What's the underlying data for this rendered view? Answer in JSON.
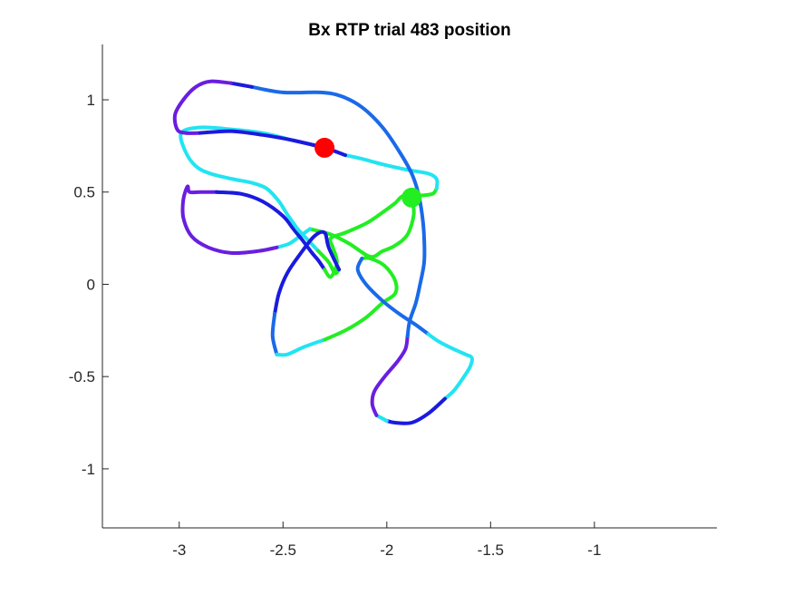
{
  "chart_data": {
    "type": "line",
    "title": "Bx  RTP trial 483 position",
    "xlabel": "",
    "ylabel": "",
    "xlim": [
      -3.37,
      -0.41
    ],
    "ylim": [
      -1.32,
      1.3
    ],
    "grid": false,
    "x_ticks": [
      {
        "value": -3,
        "label": "-3"
      },
      {
        "value": -2.5,
        "label": "-2.5"
      },
      {
        "value": -2,
        "label": "-2"
      },
      {
        "value": -1.5,
        "label": "-1.5"
      },
      {
        "value": -1,
        "label": "-1"
      }
    ],
    "y_ticks": [
      {
        "value": 1,
        "label": "1"
      },
      {
        "value": 0.5,
        "label": "0.5"
      },
      {
        "value": 0,
        "label": "0"
      },
      {
        "value": -0.5,
        "label": "-0.5"
      },
      {
        "value": -1,
        "label": "-1"
      }
    ],
    "colors": {
      "blue": "#1a1adf",
      "violet": "#6a1ee0",
      "azure": "#1a6ae8",
      "cyan": "#22e4f2",
      "green": "#22ee22",
      "start_marker": "#22ee22",
      "end_marker": "#ff0000",
      "axis": "#262626"
    },
    "markers": [
      {
        "name": "start",
        "x": -1.88,
        "y": 0.47,
        "color": "#22ee22"
      },
      {
        "name": "end",
        "x": -2.3,
        "y": 0.74,
        "color": "#ff0000"
      }
    ],
    "trajectory_segments": [
      {
        "color": "green",
        "points": [
          [
            -1.88,
            0.47
          ],
          [
            -1.87,
            0.38
          ],
          [
            -1.9,
            0.27
          ],
          [
            -1.96,
            0.21
          ],
          [
            -2.02,
            0.18
          ],
          [
            -2.08,
            0.15
          ],
          [
            -2.18,
            0.22
          ],
          [
            -2.27,
            0.27
          ],
          [
            -2.37,
            0.3
          ]
        ]
      },
      {
        "color": "cyan",
        "points": [
          [
            -2.37,
            0.3
          ],
          [
            -2.42,
            0.26
          ],
          [
            -2.47,
            0.22
          ],
          [
            -2.53,
            0.2
          ]
        ]
      },
      {
        "color": "violet",
        "points": [
          [
            -2.53,
            0.2
          ],
          [
            -2.62,
            0.18
          ],
          [
            -2.75,
            0.17
          ],
          [
            -2.86,
            0.2
          ],
          [
            -2.94,
            0.26
          ],
          [
            -2.98,
            0.36
          ],
          [
            -2.98,
            0.46
          ],
          [
            -2.96,
            0.53
          ],
          [
            -2.95,
            0.5
          ],
          [
            -2.9,
            0.5
          ],
          [
            -2.82,
            0.5
          ]
        ]
      },
      {
        "color": "blue",
        "points": [
          [
            -2.82,
            0.5
          ],
          [
            -2.7,
            0.49
          ],
          [
            -2.6,
            0.45
          ],
          [
            -2.5,
            0.37
          ],
          [
            -2.45,
            0.3
          ],
          [
            -2.4,
            0.23
          ],
          [
            -2.36,
            0.17
          ],
          [
            -2.33,
            0.13
          ],
          [
            -2.3,
            0.08
          ]
        ]
      },
      {
        "color": "green",
        "points": [
          [
            -2.3,
            0.08
          ],
          [
            -2.27,
            0.04
          ],
          [
            -2.24,
            0.12
          ],
          [
            -2.26,
            0.2
          ],
          [
            -2.27,
            0.25
          ],
          [
            -2.2,
            0.28
          ],
          [
            -2.1,
            0.33
          ],
          [
            -2.02,
            0.39
          ],
          [
            -1.96,
            0.44
          ],
          [
            -1.92,
            0.48
          ],
          [
            -1.85,
            0.48
          ],
          [
            -1.78,
            0.49
          ],
          [
            -1.76,
            0.52
          ]
        ]
      },
      {
        "color": "cyan",
        "points": [
          [
            -1.76,
            0.52
          ],
          [
            -1.76,
            0.57
          ],
          [
            -1.8,
            0.6
          ],
          [
            -1.9,
            0.62
          ],
          [
            -2.02,
            0.65
          ],
          [
            -2.12,
            0.68
          ],
          [
            -2.2,
            0.7
          ]
        ]
      },
      {
        "color": "blue",
        "points": [
          [
            -2.2,
            0.7
          ],
          [
            -2.3,
            0.74
          ],
          [
            -2.45,
            0.78
          ]
        ]
      },
      {
        "color": "cyan",
        "points": [
          [
            -2.45,
            0.78
          ],
          [
            -2.6,
            0.82
          ],
          [
            -2.75,
            0.84
          ],
          [
            -2.9,
            0.85
          ],
          [
            -2.99,
            0.82
          ],
          [
            -2.97,
            0.72
          ],
          [
            -2.92,
            0.64
          ],
          [
            -2.85,
            0.6
          ],
          [
            -2.74,
            0.57
          ],
          [
            -2.65,
            0.55
          ],
          [
            -2.58,
            0.52
          ],
          [
            -2.52,
            0.45
          ],
          [
            -2.48,
            0.38
          ],
          [
            -2.43,
            0.3
          ]
        ]
      },
      {
        "color": "cyan",
        "points": [
          [
            -2.43,
            0.3
          ],
          [
            -2.38,
            0.24
          ],
          [
            -2.33,
            0.18
          ]
        ]
      },
      {
        "color": "green",
        "points": [
          [
            -2.33,
            0.18
          ],
          [
            -2.28,
            0.12
          ],
          [
            -2.25,
            0.06
          ],
          [
            -2.23,
            0.08
          ]
        ]
      },
      {
        "color": "blue",
        "points": [
          [
            -2.23,
            0.08
          ],
          [
            -2.28,
            0.2
          ],
          [
            -2.3,
            0.28
          ],
          [
            -2.35,
            0.26
          ],
          [
            -2.42,
            0.16
          ],
          [
            -2.48,
            0.06
          ],
          [
            -2.52,
            -0.05
          ],
          [
            -2.54,
            -0.16
          ]
        ]
      },
      {
        "color": "azure",
        "points": [
          [
            -2.54,
            -0.16
          ],
          [
            -2.55,
            -0.28
          ],
          [
            -2.53,
            -0.38
          ]
        ]
      },
      {
        "color": "cyan",
        "points": [
          [
            -2.53,
            -0.38
          ],
          [
            -2.48,
            -0.38
          ],
          [
            -2.4,
            -0.34
          ],
          [
            -2.3,
            -0.3
          ]
        ]
      },
      {
        "color": "green",
        "points": [
          [
            -2.3,
            -0.3
          ],
          [
            -2.2,
            -0.25
          ],
          [
            -2.1,
            -0.18
          ],
          [
            -2.02,
            -0.1
          ],
          [
            -1.96,
            -0.05
          ],
          [
            -1.96,
            0.02
          ],
          [
            -2.01,
            0.1
          ],
          [
            -2.08,
            0.14
          ],
          [
            -2.12,
            0.14
          ]
        ]
      },
      {
        "color": "azure",
        "points": [
          [
            -2.12,
            0.14
          ],
          [
            -2.14,
            0.08
          ],
          [
            -2.1,
            0.0
          ],
          [
            -2.02,
            -0.09
          ],
          [
            -1.94,
            -0.16
          ],
          [
            -1.86,
            -0.22
          ],
          [
            -1.8,
            -0.27
          ]
        ]
      },
      {
        "color": "cyan",
        "points": [
          [
            -1.8,
            -0.27
          ],
          [
            -1.75,
            -0.31
          ],
          [
            -1.68,
            -0.35
          ],
          [
            -1.62,
            -0.38
          ],
          [
            -1.59,
            -0.4
          ],
          [
            -1.6,
            -0.45
          ],
          [
            -1.64,
            -0.52
          ],
          [
            -1.68,
            -0.58
          ],
          [
            -1.72,
            -0.62
          ]
        ]
      },
      {
        "color": "blue",
        "points": [
          [
            -1.72,
            -0.62
          ],
          [
            -1.8,
            -0.7
          ],
          [
            -1.88,
            -0.75
          ],
          [
            -1.96,
            -0.75
          ],
          [
            -2.0,
            -0.74
          ]
        ]
      },
      {
        "color": "cyan",
        "points": [
          [
            -2.0,
            -0.74
          ],
          [
            -2.05,
            -0.71
          ]
        ]
      },
      {
        "color": "violet",
        "points": [
          [
            -2.05,
            -0.71
          ],
          [
            -2.07,
            -0.65
          ],
          [
            -2.06,
            -0.58
          ],
          [
            -2.01,
            -0.5
          ],
          [
            -1.95,
            -0.42
          ],
          [
            -1.91,
            -0.35
          ],
          [
            -1.9,
            -0.28
          ]
        ]
      },
      {
        "color": "azure",
        "points": [
          [
            -1.9,
            -0.28
          ],
          [
            -1.89,
            -0.2
          ],
          [
            -1.86,
            -0.1
          ],
          [
            -1.84,
            0.0
          ],
          [
            -1.82,
            0.12
          ],
          [
            -1.82,
            0.25
          ],
          [
            -1.83,
            0.38
          ],
          [
            -1.85,
            0.5
          ],
          [
            -1.88,
            0.6
          ],
          [
            -1.94,
            0.72
          ],
          [
            -2.02,
            0.85
          ],
          [
            -2.12,
            0.96
          ],
          [
            -2.22,
            1.02
          ],
          [
            -2.32,
            1.04
          ],
          [
            -2.5,
            1.04
          ],
          [
            -2.65,
            1.07
          ]
        ]
      },
      {
        "color": "blue",
        "points": [
          [
            -2.65,
            1.07
          ],
          [
            -2.75,
            1.09
          ]
        ]
      },
      {
        "color": "violet",
        "points": [
          [
            -2.75,
            1.09
          ],
          [
            -2.85,
            1.1
          ],
          [
            -2.92,
            1.07
          ],
          [
            -2.98,
            1.0
          ],
          [
            -3.02,
            0.92
          ],
          [
            -3.01,
            0.84
          ],
          [
            -2.97,
            0.82
          ],
          [
            -2.9,
            0.82
          ]
        ]
      },
      {
        "color": "blue",
        "points": [
          [
            -2.9,
            0.82
          ],
          [
            -2.75,
            0.83
          ],
          [
            -2.6,
            0.81
          ],
          [
            -2.45,
            0.78
          ],
          [
            -2.3,
            0.74
          ]
        ]
      }
    ]
  }
}
